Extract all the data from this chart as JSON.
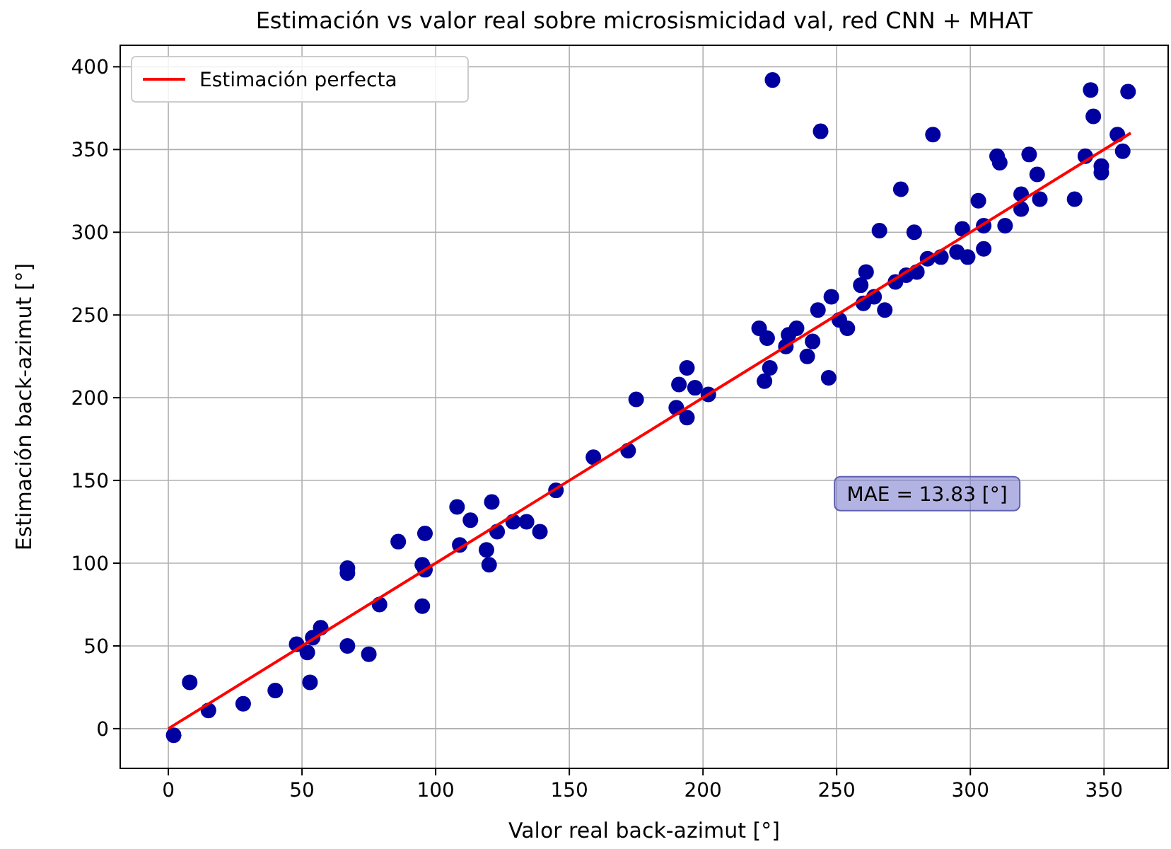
{
  "chart_data": {
    "type": "scatter",
    "title": "Estimación vs valor real sobre microsismicidad val, red CNN + MHAT",
    "xlabel": "Valor real back-azimut [°]",
    "ylabel": "Estimación back-azimut [°]",
    "xlim": [
      -18,
      374
    ],
    "ylim": [
      -24,
      413
    ],
    "xticks": [
      0,
      50,
      100,
      150,
      200,
      250,
      300,
      350
    ],
    "yticks": [
      0,
      50,
      100,
      150,
      200,
      250,
      300,
      350,
      400
    ],
    "grid": true,
    "legend": "top left",
    "marker": "circle",
    "annotations": [
      "MAE = 13.83 [°]"
    ],
    "series": [
      {
        "color": "#0000a0",
        "x": [
          2,
          8,
          15,
          28,
          40,
          48,
          52,
          54,
          57,
          53,
          67,
          67,
          67,
          75,
          79,
          86,
          96,
          95,
          96,
          95,
          108,
          109,
          113,
          119,
          120,
          121,
          123,
          129,
          134,
          139,
          145,
          159,
          172,
          175,
          190,
          191,
          194,
          197,
          194,
          202,
          221,
          223,
          225,
          224,
          226,
          231,
          232,
          235,
          239,
          241,
          243,
          247,
          248,
          251,
          254,
          260,
          264,
          259,
          261,
          268,
          272,
          276,
          280,
          284,
          289,
          295,
          299,
          305,
          305,
          313,
          319,
          266,
          274,
          279,
          286,
          244,
          297,
          303,
          310,
          311,
          322,
          325,
          319,
          326,
          339,
          343,
          345,
          346,
          359,
          355,
          357,
          349,
          349
        ],
        "values": [
          -4,
          28,
          11,
          15,
          23,
          51,
          46,
          55,
          61,
          28,
          97,
          94,
          50,
          45,
          75,
          113,
          118,
          99,
          96,
          74,
          134,
          111,
          126,
          108,
          99,
          137,
          119,
          125,
          125,
          119,
          144,
          164,
          168,
          199,
          194,
          208,
          218,
          206,
          188,
          202,
          242,
          210,
          218,
          236,
          392,
          231,
          238,
          242,
          225,
          234,
          253,
          212,
          261,
          247,
          242,
          257,
          261,
          268,
          276,
          253,
          270,
          274,
          276,
          284,
          285,
          288,
          285,
          290,
          304,
          304,
          314,
          301,
          326,
          300,
          359,
          361,
          302,
          319,
          346,
          342,
          347,
          335,
          323,
          320,
          320,
          346,
          386,
          370,
          385,
          359,
          349,
          340,
          336
        ]
      },
      {
        "type": "line",
        "name": "Estimación perfecta",
        "color": "#ff0000",
        "x": [
          0,
          360
        ],
        "values": [
          0,
          360
        ],
        "marker": "none",
        "line_style": "solid"
      }
    ]
  }
}
